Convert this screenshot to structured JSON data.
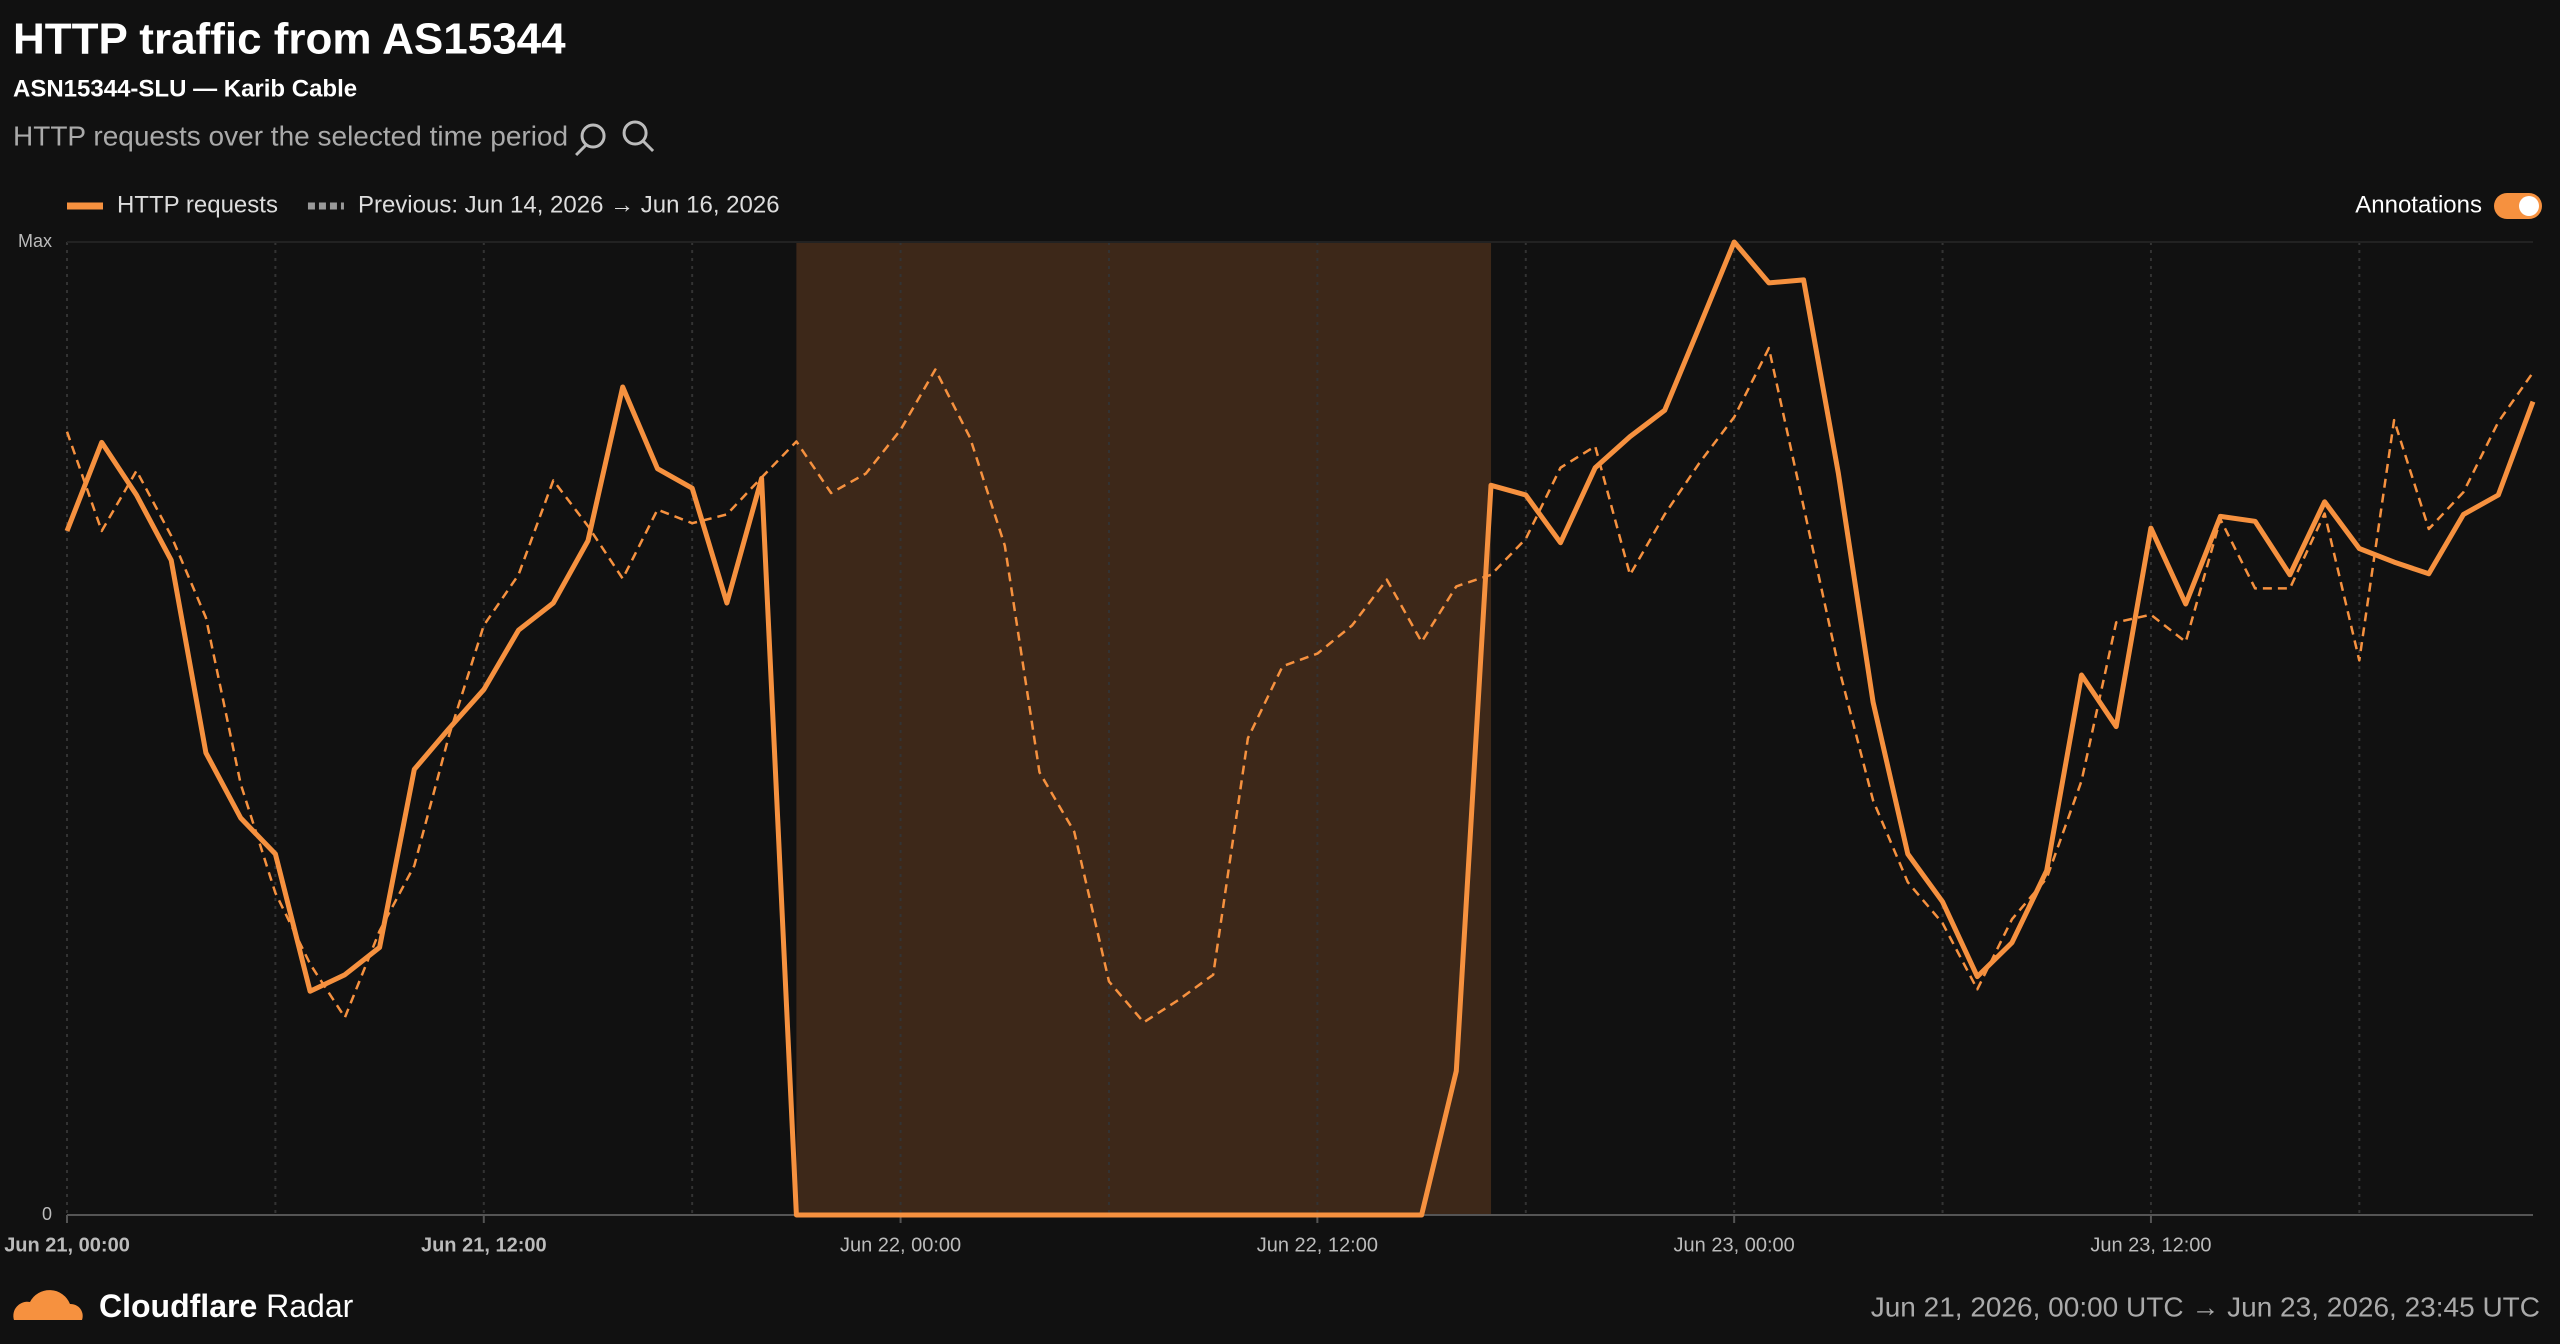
{
  "header": {
    "title": "HTTP traffic from AS15344",
    "subtitle": "ASN15344-SLU — Karib Cable",
    "description": "HTTP requests over the selected time period"
  },
  "annotations_toggle": "Annotations",
  "chart_data": {
    "type": "line",
    "categories": [
      "Jun 21, 00:00",
      null,
      null,
      null,
      null,
      null,
      null,
      null,
      null,
      null,
      null,
      null,
      "Jun 21, 12:00",
      null,
      null,
      null,
      null,
      null,
      null,
      null,
      null,
      null,
      null,
      null,
      "Jun 22, 00:00",
      null,
      null,
      null,
      null,
      null,
      null,
      null,
      null,
      null,
      null,
      null,
      "Jun 22, 12:00",
      null,
      null,
      null,
      null,
      null,
      null,
      null,
      null,
      null,
      null,
      null,
      "Jun 23, 00:00",
      null,
      null,
      null,
      null,
      null,
      null,
      null,
      null,
      null,
      null,
      null,
      "Jun 23, 12:00",
      null,
      null,
      null,
      null,
      null,
      null,
      null,
      null,
      null,
      null,
      null
    ],
    "series": [
      {
        "name": "HTTP requests",
        "color": "#f6913f",
        "dashed": false,
        "values": [
          70.3,
          79.4,
          74,
          67.3,
          47.5,
          40.8,
          37.1,
          23,
          24.7,
          27.5,
          45.8,
          50,
          54,
          60.1,
          62.9,
          69.3,
          85.1,
          76.7,
          74.7,
          62.9,
          75.7,
          0,
          0,
          0,
          0,
          0,
          0,
          0,
          0,
          0,
          0,
          0,
          0,
          0,
          0,
          0,
          0,
          0,
          0,
          0,
          14.8,
          75,
          74,
          69.1,
          76.8,
          80,
          82.7,
          91.3,
          100,
          95.8,
          96.1,
          76.2,
          52.7,
          37.1,
          32.2,
          24.5,
          28,
          35.4,
          55.5,
          50.2,
          70.6,
          62.8,
          71.8,
          71.3,
          65.8,
          73.3,
          68.5,
          67.1,
          65.9,
          72,
          74,
          83.6
        ]
      },
      {
        "name": "Previous: Jun 14, 2026 → Jun 16, 2026",
        "color": "#f6913f",
        "dashed": true,
        "values": [
          80.5,
          70.3,
          76.5,
          69.8,
          61.4,
          44.3,
          33.1,
          25.8,
          20.3,
          29.2,
          35.9,
          49.3,
          60.6,
          65.8,
          75.5,
          70.8,
          65.4,
          72.5,
          71.1,
          72,
          75.8,
          79.5,
          74.2,
          76.2,
          80.7,
          86.9,
          79.9,
          68.8,
          45.5,
          39.4,
          24,
          19.8,
          22.1,
          24.7,
          49,
          56.4,
          57.7,
          60.6,
          65.3,
          58.9,
          64.6,
          65.8,
          69.5,
          76.8,
          79,
          65.8,
          72,
          77.3,
          82,
          89.1,
          72.8,
          56.4,
          42.6,
          34.2,
          30,
          23.2,
          30.4,
          34.6,
          44.6,
          60.9,
          61.7,
          58.9,
          71.5,
          64.4,
          64.4,
          72.1,
          57,
          81.7,
          70.5,
          74.3,
          81.5,
          86.6
        ]
      }
    ],
    "ylim": [
      0,
      100
    ],
    "yticks": [
      {
        "value": 100,
        "label": "Max"
      },
      0
    ],
    "grid": true
  },
  "footer": {
    "brand_bold": "Cloudflare",
    "brand": "Radar",
    "range": "Jun 21, 2026, 00:00 UTC → Jun 23, 2026, 23:45 UTC"
  }
}
